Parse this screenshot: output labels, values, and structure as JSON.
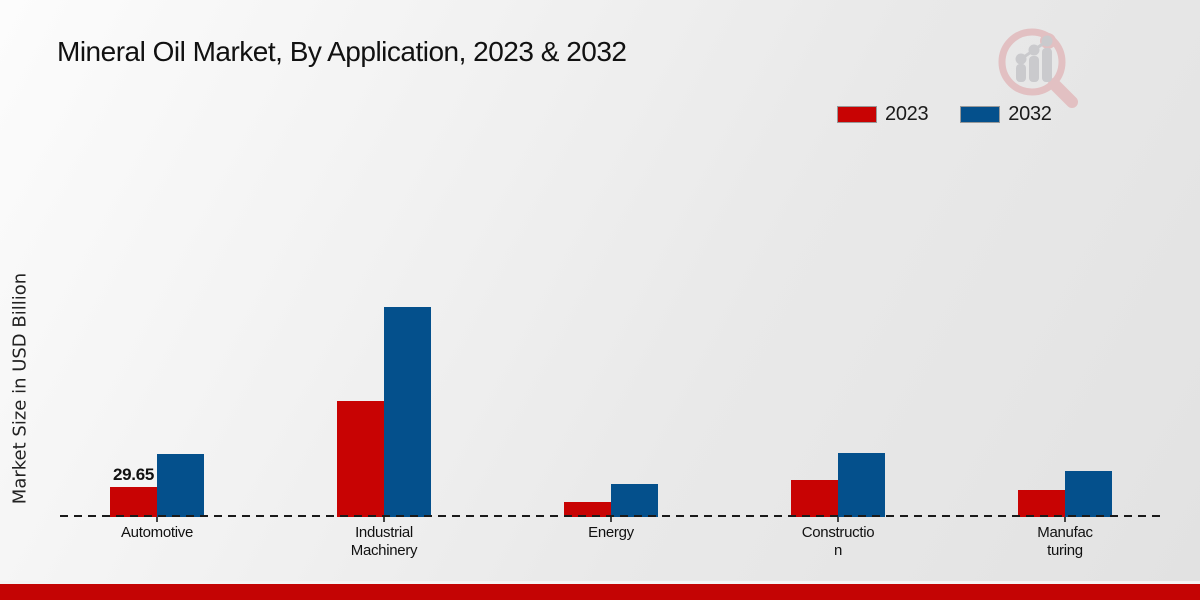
{
  "header": {
    "title": "Mineral Oil Market, By Application, 2023 & 2032"
  },
  "y_axis": {
    "label": "Market Size in USD Billion"
  },
  "legend": {
    "items": [
      {
        "label": "2023",
        "color": "#c80303"
      },
      {
        "label": "2032",
        "color": "#04508c"
      }
    ]
  },
  "icons": {
    "watermark": "magnifier-bar-chart-logo",
    "watermark_ring_color": "#e2bcbe",
    "watermark_bar_color": "#c7c7cb"
  },
  "chart_data": {
    "type": "bar",
    "title": "Mineral Oil Market, By Application, 2023 & 2032",
    "xlabel": "",
    "ylabel": "Market Size in USD Billion",
    "categories": [
      "Automotive",
      "Industrial Machinery",
      "Energy",
      "Construction",
      "Manufacturing"
    ],
    "category_label_lines": [
      [
        "Automotive"
      ],
      [
        "Industrial",
        "Machinery"
      ],
      [
        "Energy"
      ],
      [
        "Constructio",
        "n"
      ],
      [
        "Manufac",
        "turing"
      ]
    ],
    "series": [
      {
        "name": "2023",
        "color": "#c80303",
        "values": [
          29.65,
          114.7,
          14.8,
          36.6,
          26.7
        ]
      },
      {
        "name": "2032",
        "color": "#04508c",
        "values": [
          62.25,
          207.5,
          32.6,
          63.2,
          45.4
        ]
      }
    ],
    "ylim": [
      0,
      220
    ],
    "grid": false,
    "legend_position": "top-right",
    "baseline_style": "dashed",
    "data_labels": [
      {
        "series": "2023",
        "category": "Automotive",
        "text": "29.65"
      }
    ]
  },
  "footer": {
    "stripe_color": "#c40404"
  }
}
